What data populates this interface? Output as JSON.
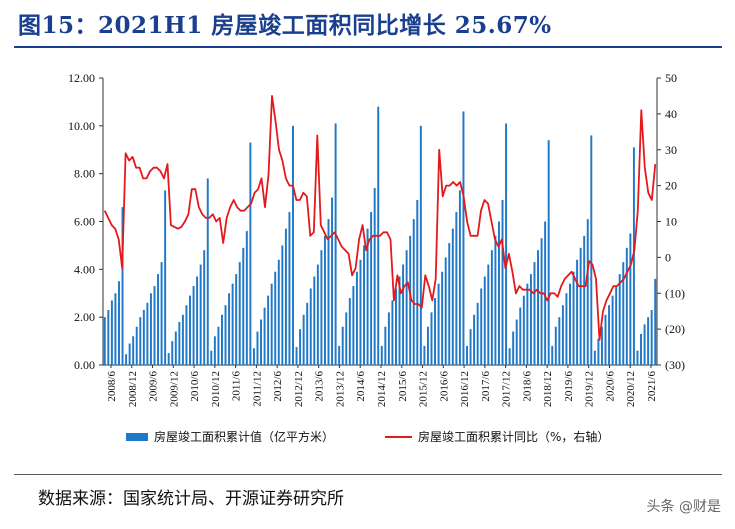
{
  "title": "图15：2021H1 房屋竣工面积同比增长 25.67%",
  "source": "数据来源：国家统计局、开源证券研究所",
  "watermark": "头条 @财是",
  "chart_data": {
    "type": "bar+line",
    "bar_color": "#1f78c8",
    "line_color": "#e31a1c",
    "y_left": {
      "min": 0,
      "max": 12,
      "ticks": [
        "0.00",
        "2.00",
        "4.00",
        "6.00",
        "8.00",
        "10.00",
        "12.00"
      ]
    },
    "y_right": {
      "min": -30,
      "max": 50,
      "ticks": [
        "(30)",
        "(20)",
        "(10)",
        "0",
        "10",
        "20",
        "30",
        "40",
        "50"
      ]
    },
    "x_tick_labels": [
      "2008/6",
      "2008/12",
      "2009/6",
      "2009/12",
      "2010/6",
      "2010/12",
      "2011/6",
      "2011/12",
      "2012/6",
      "2012/12",
      "2013/6",
      "2013/12",
      "2014/6",
      "2014/12",
      "2015/6",
      "2015/12",
      "2016/6",
      "2016/12",
      "2017/6",
      "2017/12",
      "2018/6",
      "2018/12",
      "2019/6",
      "2019/12",
      "2020/6",
      "2020/12",
      "2021/6"
    ],
    "legend": [
      {
        "key": "bar",
        "label": "房屋竣工面积累计值（亿平方米）"
      },
      {
        "key": "line",
        "label": "房屋竣工面积累计同比（%，右轴）"
      }
    ],
    "bar_values": [
      [
        2.0,
        2.3,
        2.7,
        3.0,
        3.5,
        6.6
      ],
      [
        0.45,
        0.9,
        1.2,
        1.6,
        2.0,
        2.3,
        2.6,
        3.0,
        3.3,
        3.8,
        4.3,
        7.3
      ],
      [
        0.5,
        1.0,
        1.4,
        1.8,
        2.1,
        2.5,
        2.9,
        3.3,
        3.7,
        4.2,
        4.8,
        7.8
      ],
      [
        0.6,
        1.2,
        1.6,
        2.1,
        2.5,
        3.0,
        3.4,
        3.8,
        4.3,
        4.9,
        5.6,
        9.3
      ],
      [
        0.7,
        1.4,
        1.9,
        2.4,
        2.9,
        3.4,
        3.9,
        4.4,
        5.0,
        5.7,
        6.4,
        10.0
      ],
      [
        0.75,
        1.5,
        2.1,
        2.6,
        3.2,
        3.7,
        4.2,
        4.8,
        5.4,
        6.1,
        7.0,
        10.1
      ],
      [
        0.8,
        1.6,
        2.2,
        2.8,
        3.3,
        3.9,
        4.4,
        5.0,
        5.7,
        6.4,
        7.4,
        10.8
      ],
      [
        0.8,
        1.6,
        2.2,
        2.7,
        3.2,
        3.7,
        4.2,
        4.8,
        5.4,
        6.1,
        6.9,
        10.0
      ],
      [
        0.8,
        1.6,
        2.2,
        2.8,
        3.4,
        3.9,
        4.5,
        5.1,
        5.7,
        6.4,
        7.3,
        10.6
      ],
      [
        0.8,
        1.5,
        2.1,
        2.6,
        3.2,
        3.7,
        4.2,
        4.8,
        5.4,
        6.0,
        6.9,
        10.1
      ],
      [
        0.7,
        1.4,
        1.9,
        2.4,
        2.9,
        3.4,
        3.8,
        4.3,
        4.8,
        5.3,
        6.0,
        9.4
      ],
      [
        0.8,
        1.6,
        2.0,
        2.5,
        3.0,
        3.4,
        3.9,
        4.4,
        4.9,
        5.4,
        6.1,
        9.6
      ],
      [
        0.6,
        1.1,
        1.6,
        2.1,
        2.5,
        2.9,
        3.3,
        3.8,
        4.3,
        4.9,
        5.5,
        9.1
      ],
      [
        0.6,
        1.3,
        1.7,
        2.0,
        2.3,
        3.6
      ]
    ],
    "line_values": [
      13,
      11,
      9,
      8,
      5,
      -3,
      29,
      27,
      28,
      25,
      25,
      22,
      22,
      24,
      25,
      25,
      24,
      22,
      26,
      9,
      8.5,
      8,
      8.5,
      10,
      12,
      19,
      19,
      14,
      12,
      11,
      11,
      12,
      10,
      11,
      4,
      11,
      14,
      16,
      14,
      13,
      13,
      14,
      15,
      18,
      19,
      22,
      14,
      23,
      45,
      38,
      30,
      27,
      22,
      20,
      20,
      16,
      16,
      18,
      17,
      6,
      7,
      34,
      9,
      7,
      5,
      6,
      7,
      5,
      3,
      2,
      1,
      -5,
      -3,
      5,
      9,
      2,
      5,
      6,
      6,
      6,
      7,
      7,
      5,
      -12,
      -5,
      -10,
      -8,
      -7,
      -12,
      -13,
      -13,
      -14,
      -5,
      -8,
      -12,
      -6,
      30,
      17,
      20,
      20,
      21,
      20,
      21,
      17,
      10,
      6,
      6,
      6,
      13,
      16,
      15,
      10,
      5,
      3,
      5,
      -3,
      1,
      -4,
      -10,
      -8,
      -9,
      -9,
      -9,
      -10,
      -9,
      -10,
      -10,
      -12,
      -10,
      -10,
      -11,
      -8,
      -6,
      -5,
      -4,
      -6,
      -8,
      -8,
      -8,
      -1,
      -2,
      -6,
      -23,
      -15,
      -12,
      -10,
      -8,
      -8,
      -7,
      -6,
      -4,
      -2,
      2,
      13,
      41,
      25,
      18,
      16,
      26
    ]
  }
}
